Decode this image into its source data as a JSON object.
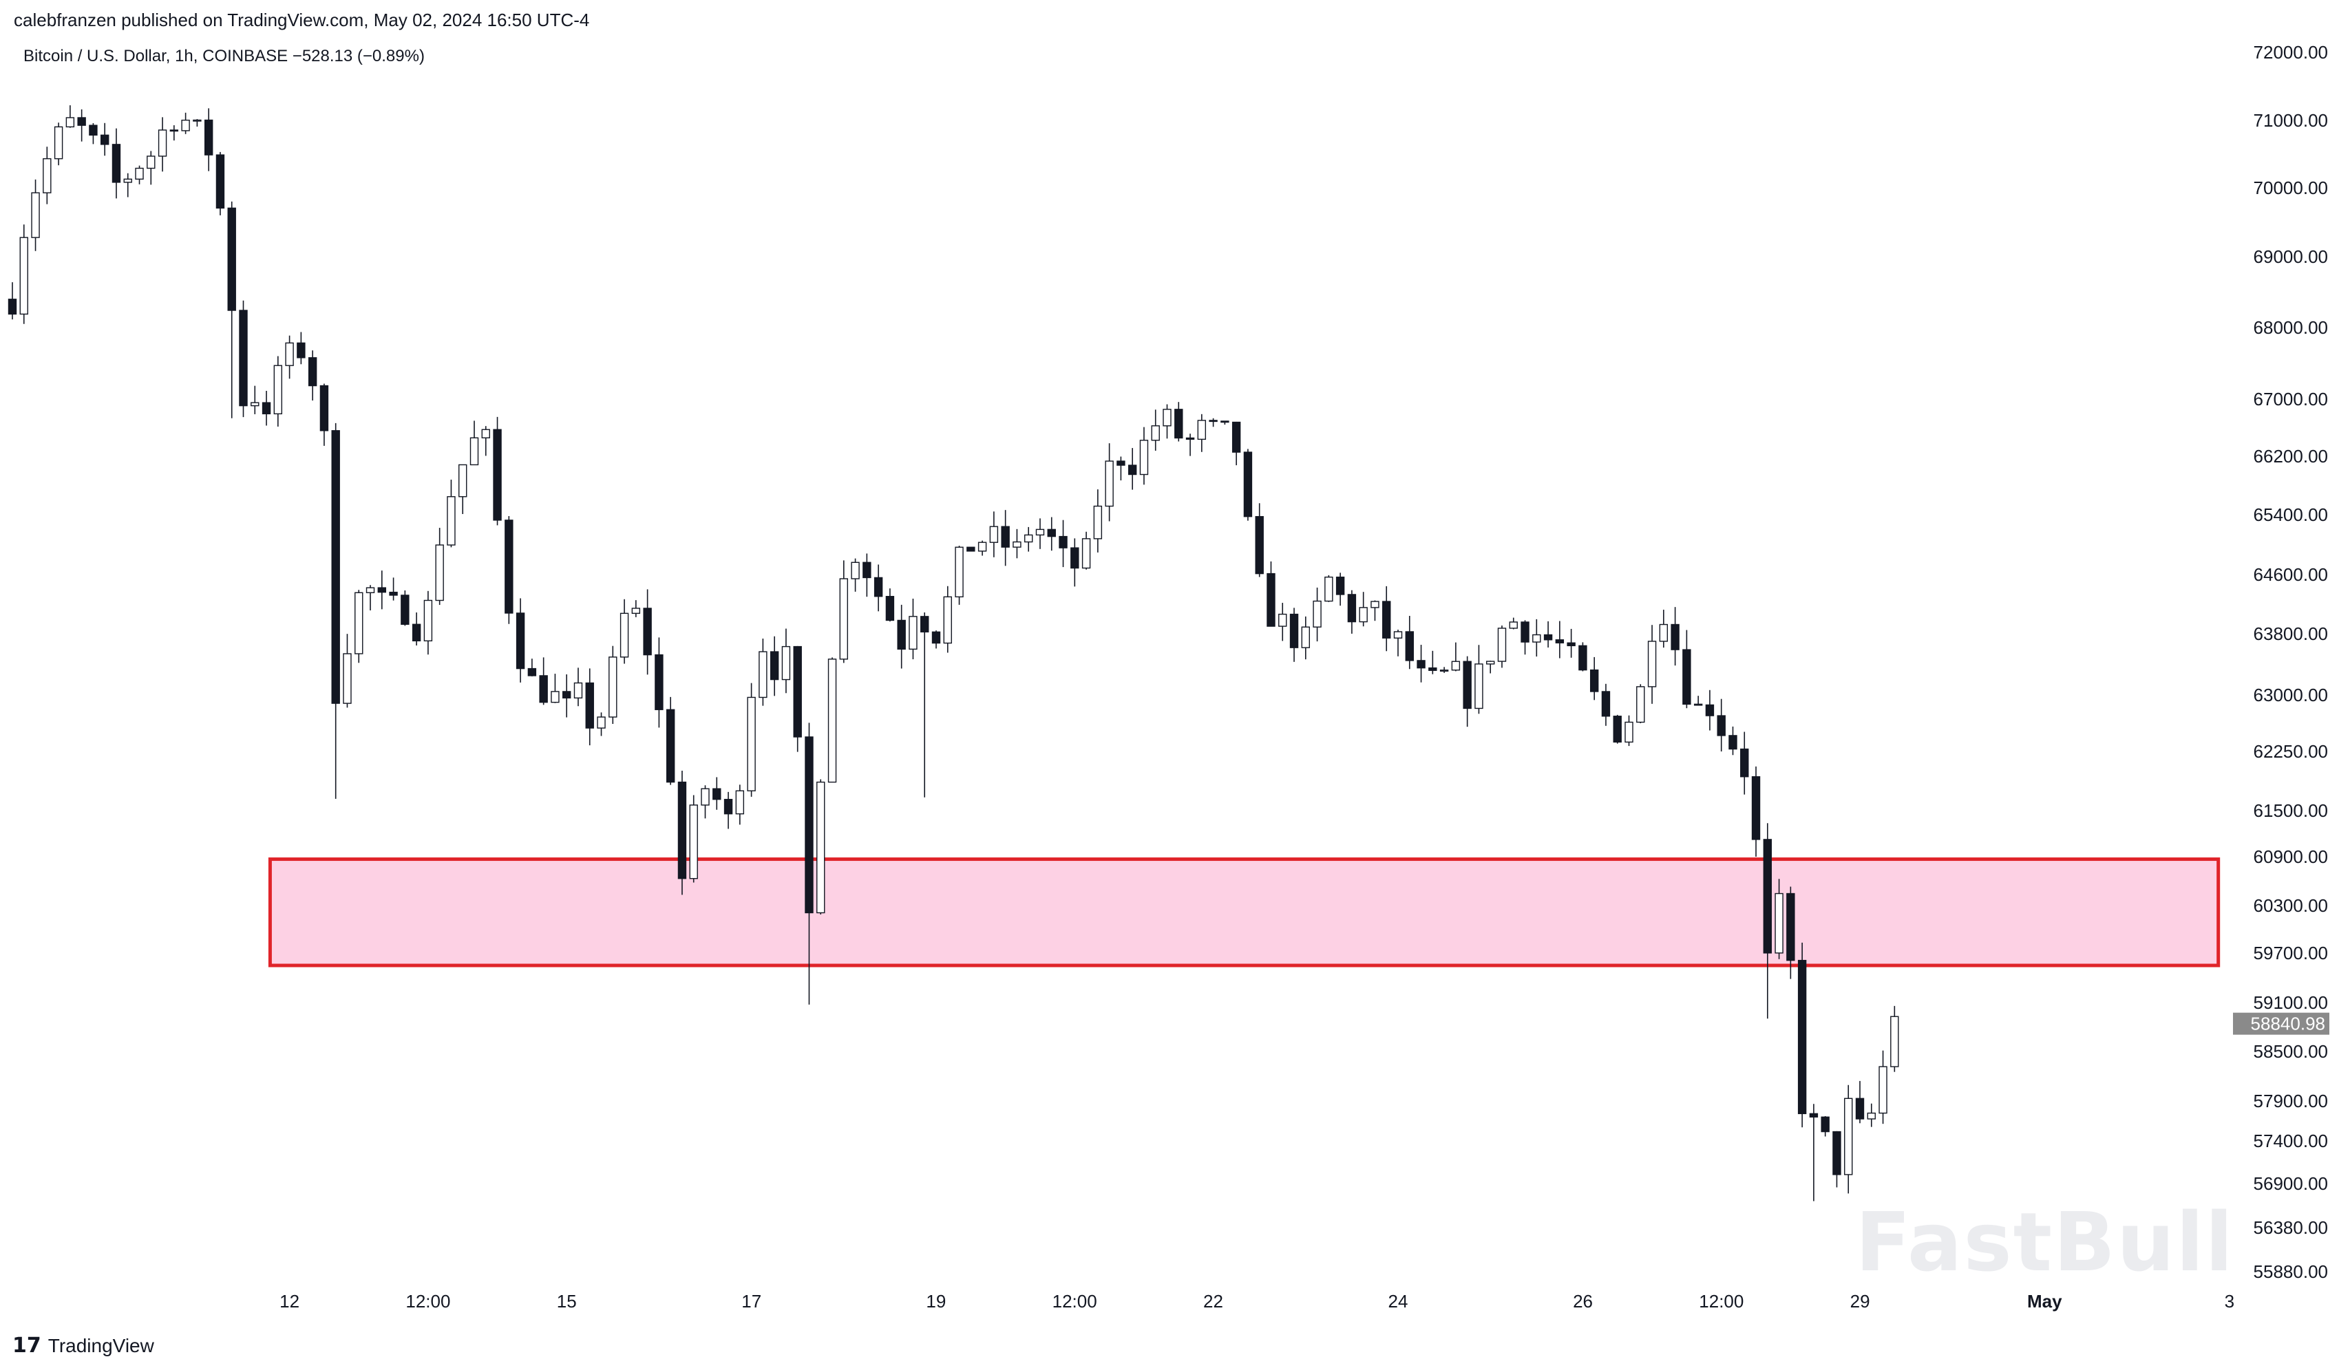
{
  "header": {
    "published": "calebfranzen published on TradingView.com, May 02, 2024 16:50 UTC-4",
    "symbol": "Bitcoin / U.S. Dollar, 1h, COINBASE  −528.13 (−0.89%)"
  },
  "branding": {
    "logo_mark": "17",
    "logo_text": "TradingView",
    "watermark": "FastBull"
  },
  "colors": {
    "zone_fill": "#fdd1e4",
    "zone_border": "#e0242a",
    "candle": "#131722",
    "price_tag": "#8a8a8a"
  },
  "chart_data": {
    "type": "candlestick",
    "symbol": "Bitcoin / U.S. Dollar",
    "interval": "1h",
    "exchange": "COINBASE",
    "change": -528.13,
    "change_pct": -0.89,
    "last_price": 58840.98,
    "last_price_label": "58840.98",
    "y_ticks": [
      72000,
      71000,
      70000,
      69000,
      68000,
      67000,
      66200,
      65400,
      64600,
      63800,
      63000,
      62250,
      61500,
      60900,
      60300,
      59700,
      59100,
      58500,
      57900,
      57400,
      56900,
      56380,
      55880
    ],
    "y_tick_labels": [
      "72000.00",
      "71000.00",
      "70000.00",
      "69000.00",
      "68000.00",
      "67000.00",
      "66200.00",
      "65400.00",
      "64600.00",
      "63800.00",
      "63000.00",
      "62250.00",
      "61500.00",
      "60900.00",
      "60300.00",
      "59700.00",
      "59100.00",
      "58500.00",
      "57900.00",
      "57400.00",
      "56900.00",
      "56380.00",
      "55880.00"
    ],
    "x_ticks": [
      {
        "label": "12",
        "day": 1.0
      },
      {
        "label": "12:00",
        "day": 1.5
      },
      {
        "label": "15",
        "day": 2.0
      },
      {
        "label": "17",
        "day": 2.667
      },
      {
        "label": "19",
        "day": 3.333
      },
      {
        "label": "12:00",
        "day": 3.833
      },
      {
        "label": "22",
        "day": 4.333
      },
      {
        "label": "24",
        "day": 5.0
      },
      {
        "label": "26",
        "day": 5.667
      },
      {
        "label": "12:00",
        "day": 6.167
      },
      {
        "label": "29",
        "day": 6.667
      },
      {
        "label": "May",
        "day": 7.333,
        "bold": true
      },
      {
        "label": "3",
        "day": 8.0
      }
    ],
    "zone": {
      "low": 59550,
      "high": 60870,
      "start_day": 0.93,
      "end_day": 7.96
    },
    "path": [
      [
        0.0,
        68400
      ],
      [
        0.05,
        69600
      ],
      [
        0.1,
        70200
      ],
      [
        0.17,
        70800
      ],
      [
        0.22,
        71000
      ],
      [
        0.28,
        70700
      ],
      [
        0.33,
        70500
      ],
      [
        0.38,
        70000
      ],
      [
        0.44,
        70300
      ],
      [
        0.5,
        70500
      ],
      [
        0.55,
        70900
      ],
      [
        0.6,
        71100
      ],
      [
        0.65,
        70900
      ],
      [
        0.7,
        70700
      ],
      [
        0.74,
        70000
      ],
      [
        0.78,
        68800
      ],
      [
        0.81,
        67600
      ],
      [
        0.84,
        66800
      ],
      [
        0.88,
        67100
      ],
      [
        0.92,
        66600
      ],
      [
        0.96,
        67500
      ],
      [
        1.0,
        67600
      ],
      [
        1.05,
        67700
      ],
      [
        1.08,
        67300
      ],
      [
        1.12,
        66800
      ],
      [
        1.15,
        64400
      ],
      [
        1.17,
        62800
      ],
      [
        1.2,
        63600
      ],
      [
        1.25,
        64300
      ],
      [
        1.3,
        64400
      ],
      [
        1.35,
        64100
      ],
      [
        1.4,
        64200
      ],
      [
        1.45,
        64000
      ],
      [
        1.48,
        63700
      ],
      [
        1.52,
        64600
      ],
      [
        1.55,
        65300
      ],
      [
        1.6,
        65900
      ],
      [
        1.64,
        66200
      ],
      [
        1.68,
        66500
      ],
      [
        1.71,
        66400
      ],
      [
        1.74,
        65600
      ],
      [
        1.78,
        64400
      ],
      [
        1.82,
        63700
      ],
      [
        1.86,
        63200
      ],
      [
        1.9,
        63100
      ],
      [
        1.95,
        63000
      ],
      [
        2.0,
        62800
      ],
      [
        2.05,
        63000
      ],
      [
        2.1,
        62500
      ],
      [
        2.15,
        63000
      ],
      [
        2.18,
        63600
      ],
      [
        2.22,
        64200
      ],
      [
        2.26,
        64000
      ],
      [
        2.3,
        63500
      ],
      [
        2.34,
        62600
      ],
      [
        2.38,
        61900
      ],
      [
        2.41,
        60500
      ],
      [
        2.45,
        61300
      ],
      [
        2.5,
        61800
      ],
      [
        2.55,
        61600
      ],
      [
        2.59,
        61300
      ],
      [
        2.62,
        61800
      ],
      [
        2.66,
        63000
      ],
      [
        2.71,
        63700
      ],
      [
        2.76,
        63300
      ],
      [
        2.8,
        63500
      ],
      [
        2.84,
        62000
      ],
      [
        2.87,
        59900
      ],
      [
        2.9,
        61500
      ],
      [
        2.93,
        62500
      ],
      [
        2.96,
        63700
      ],
      [
        3.0,
        64500
      ],
      [
        3.05,
        65000
      ],
      [
        3.09,
        64600
      ],
      [
        3.13,
        64300
      ],
      [
        3.17,
        64000
      ],
      [
        3.21,
        63700
      ],
      [
        3.26,
        64300
      ],
      [
        3.3,
        63900
      ],
      [
        3.34,
        63800
      ],
      [
        3.38,
        64300
      ],
      [
        3.42,
        64800
      ],
      [
        3.46,
        65000
      ],
      [
        3.52,
        65100
      ],
      [
        3.58,
        65000
      ],
      [
        3.63,
        64900
      ],
      [
        3.68,
        65300
      ],
      [
        3.74,
        65100
      ],
      [
        3.79,
        64800
      ],
      [
        3.83,
        64700
      ],
      [
        3.88,
        64900
      ],
      [
        3.91,
        65500
      ],
      [
        3.95,
        66000
      ],
      [
        4.0,
        66200
      ],
      [
        4.05,
        66100
      ],
      [
        4.1,
        66500
      ],
      [
        4.15,
        66800
      ],
      [
        4.2,
        66500
      ],
      [
        4.25,
        66400
      ],
      [
        4.3,
        66600
      ],
      [
        4.35,
        66500
      ],
      [
        4.39,
        66500
      ],
      [
        4.43,
        66200
      ],
      [
        4.47,
        64800
      ],
      [
        4.51,
        64300
      ],
      [
        4.55,
        64000
      ],
      [
        4.6,
        63900
      ],
      [
        4.64,
        63700
      ],
      [
        4.68,
        63700
      ],
      [
        4.72,
        64300
      ],
      [
        4.76,
        64600
      ],
      [
        4.8,
        64200
      ],
      [
        4.85,
        64000
      ],
      [
        4.9,
        64200
      ],
      [
        4.95,
        63800
      ],
      [
        5.0,
        63700
      ],
      [
        5.05,
        63400
      ],
      [
        5.1,
        63100
      ],
      [
        5.15,
        63200
      ],
      [
        5.2,
        63300
      ],
      [
        5.25,
        63000
      ],
      [
        5.3,
        63300
      ],
      [
        5.35,
        63700
      ],
      [
        5.4,
        64000
      ],
      [
        5.45,
        63900
      ],
      [
        5.5,
        63800
      ],
      [
        5.55,
        63700
      ],
      [
        5.6,
        63600
      ],
      [
        5.65,
        63300
      ],
      [
        5.7,
        63000
      ],
      [
        5.75,
        62700
      ],
      [
        5.8,
        62500
      ],
      [
        5.85,
        62800
      ],
      [
        5.89,
        63200
      ],
      [
        5.92,
        64000
      ],
      [
        5.95,
        64200
      ],
      [
        5.99,
        63800
      ],
      [
        6.02,
        63300
      ],
      [
        6.05,
        63000
      ],
      [
        6.08,
        62800
      ],
      [
        6.12,
        62900
      ],
      [
        6.16,
        62600
      ],
      [
        6.2,
        62400
      ],
      [
        6.24,
        62200
      ],
      [
        6.27,
        61700
      ],
      [
        6.3,
        60800
      ],
      [
        6.32,
        60100
      ],
      [
        6.34,
        59300
      ],
      [
        6.36,
        59800
      ],
      [
        6.38,
        60400
      ],
      [
        6.4,
        59800
      ],
      [
        6.43,
        59300
      ],
      [
        6.46,
        57800
      ],
      [
        6.48,
        57100
      ],
      [
        6.51,
        57800
      ],
      [
        6.54,
        57400
      ],
      [
        6.57,
        57000
      ],
      [
        6.6,
        57300
      ],
      [
        6.63,
        57900
      ],
      [
        6.66,
        57500
      ],
      [
        6.69,
        57600
      ],
      [
        6.72,
        57800
      ],
      [
        6.75,
        58300
      ],
      [
        6.78,
        58900
      ],
      [
        6.81,
        59100
      ],
      [
        6.83,
        58900
      ]
    ]
  }
}
